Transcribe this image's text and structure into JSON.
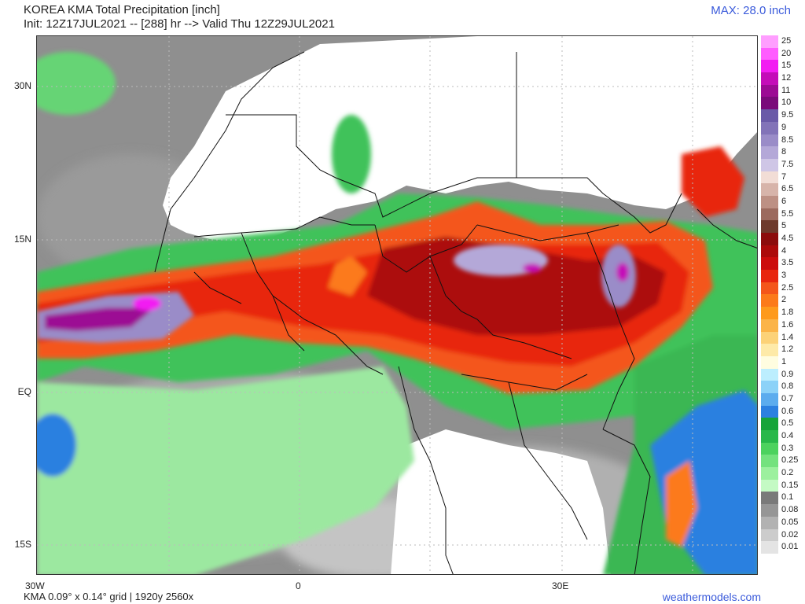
{
  "title_line1": "KOREA KMA Total Precipitation [inch]",
  "title_line2": "Init: 12Z17JUL2021 -- [288] hr --> Valid Thu 12Z29JUL2021",
  "max_label": "MAX: 28.0 inch",
  "lat_labels": [
    "30N",
    "15N",
    "EQ",
    "15S"
  ],
  "lon_labels": [
    "30W",
    "0",
    "30E"
  ],
  "footer_left": "KMA 0.09° x 0.14° grid | 1920y 2560x",
  "footer_right": "weathermodels.com",
  "legend": [
    {
      "label": "25",
      "color": "#ff9eff"
    },
    {
      "label": "20",
      "color": "#ff5cff"
    },
    {
      "label": "15",
      "color": "#f21cf2"
    },
    {
      "label": "12",
      "color": "#c40cb8"
    },
    {
      "label": "11",
      "color": "#9c0a94"
    },
    {
      "label": "10",
      "color": "#7a0a7a"
    },
    {
      "label": "9.5",
      "color": "#6a5aa8"
    },
    {
      "label": "9",
      "color": "#8273b8"
    },
    {
      "label": "8.5",
      "color": "#9a8cc8"
    },
    {
      "label": "8",
      "color": "#b4a8d8"
    },
    {
      "label": "7.5",
      "color": "#cfc6e6"
    },
    {
      "label": "7",
      "color": "#f2ddd6"
    },
    {
      "label": "6.5",
      "color": "#d7b4aa"
    },
    {
      "label": "6",
      "color": "#bd9084"
    },
    {
      "label": "5.5",
      "color": "#9c6a5e"
    },
    {
      "label": "5",
      "color": "#6e3a2c"
    },
    {
      "label": "4.5",
      "color": "#8c0c0c"
    },
    {
      "label": "4",
      "color": "#ac0a0a"
    },
    {
      "label": "3.5",
      "color": "#cc0c0c"
    },
    {
      "label": "3",
      "color": "#e8260e"
    },
    {
      "label": "2.5",
      "color": "#f4561a"
    },
    {
      "label": "2",
      "color": "#fc7a1a"
    },
    {
      "label": "1.8",
      "color": "#fe9a1c"
    },
    {
      "label": "1.6",
      "color": "#fbb448"
    },
    {
      "label": "1.4",
      "color": "#fcd278"
    },
    {
      "label": "1.2",
      "color": "#feeaa8"
    },
    {
      "label": "1",
      "color": "#fffde0"
    },
    {
      "label": "0.9",
      "color": "#bceefe"
    },
    {
      "label": "0.8",
      "color": "#8cd2f8"
    },
    {
      "label": "0.7",
      "color": "#5cacee"
    },
    {
      "label": "0.6",
      "color": "#2c80e0"
    },
    {
      "label": "0.5",
      "color": "#16a43a"
    },
    {
      "label": "0.4",
      "color": "#28b84a"
    },
    {
      "label": "0.3",
      "color": "#4cd25e"
    },
    {
      "label": "0.25",
      "color": "#74e27e"
    },
    {
      "label": "0.2",
      "color": "#9cf09e"
    },
    {
      "label": "0.15",
      "color": "#c4fac4"
    },
    {
      "label": "0.1",
      "color": "#7a7a7a"
    },
    {
      "label": "0.08",
      "color": "#969696"
    },
    {
      "label": "0.05",
      "color": "#b2b2b2"
    },
    {
      "label": "0.02",
      "color": "#cccccc"
    },
    {
      "label": "0.01",
      "color": "#e4e4e4"
    }
  ]
}
